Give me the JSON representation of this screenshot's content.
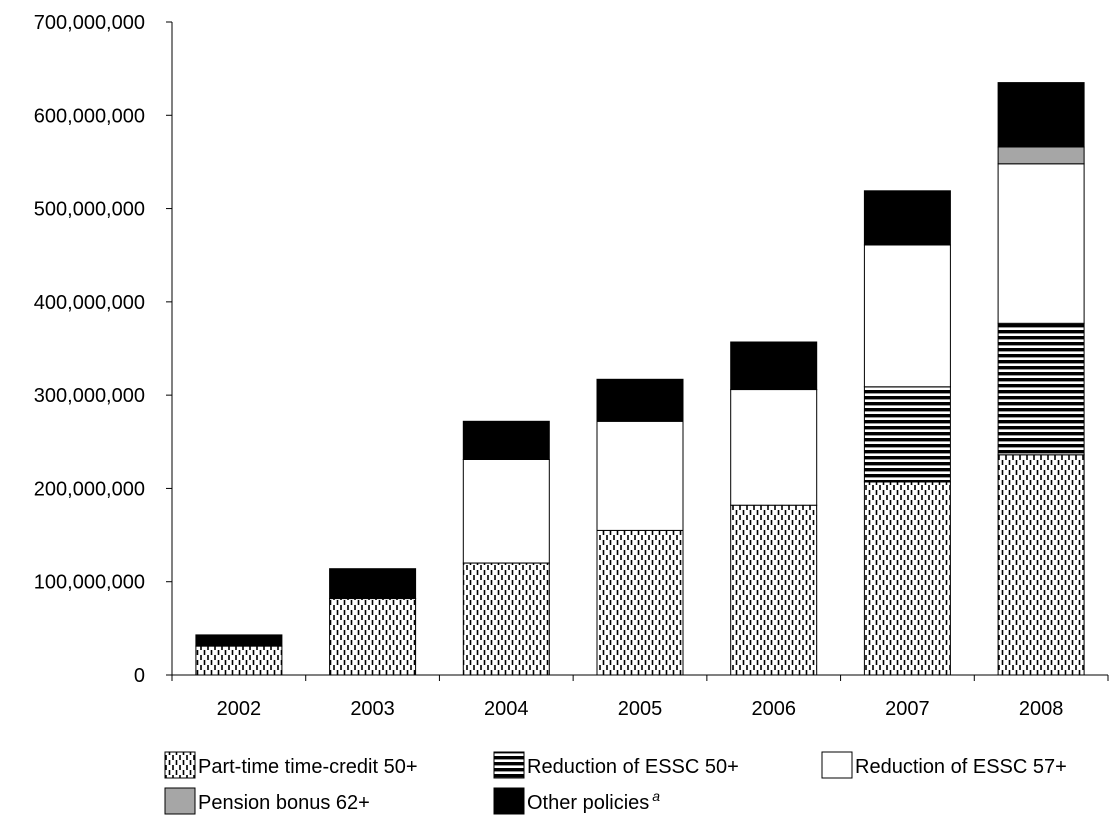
{
  "chart_data": {
    "type": "bar",
    "stacked": true,
    "title": "",
    "xlabel": "",
    "ylabel": "",
    "ylim": [
      0,
      700000000
    ],
    "yticks": [
      0,
      100000000,
      200000000,
      300000000,
      400000000,
      500000000,
      600000000,
      700000000
    ],
    "ytick_labels": [
      "0",
      "100,000,000",
      "200,000,000",
      "300,000,000",
      "400,000,000",
      "500,000,000",
      "600,000,000",
      "700,000,000"
    ],
    "grid": false,
    "legend_position": "bottom",
    "categories": [
      "2002",
      "2003",
      "2004",
      "2005",
      "2006",
      "2007",
      "2008"
    ],
    "series": [
      {
        "name": "Part-time time-credit 50+",
        "pattern": "vertical-dashes",
        "color": "#000000",
        "values": [
          31000000,
          82000000,
          120000000,
          155000000,
          182000000,
          207000000,
          236000000
        ]
      },
      {
        "name": "Reduction of ESSC 50+",
        "pattern": "horizontal-stripes",
        "color": "#000000",
        "values": [
          0,
          0,
          0,
          0,
          0,
          102000000,
          141000000
        ]
      },
      {
        "name": "Reduction of ESSC 57+",
        "pattern": "solid",
        "color": "#ffffff",
        "values": [
          0,
          0,
          111000000,
          117000000,
          124000000,
          152000000,
          171000000
        ]
      },
      {
        "name": "Pension bonus 62+",
        "pattern": "solid",
        "color": "#a6a6a6",
        "values": [
          0,
          0,
          0,
          0,
          0,
          0,
          18000000
        ]
      },
      {
        "name": "Other policies",
        "name_superscript": "a",
        "pattern": "solid",
        "color": "#000000",
        "values": [
          12000000,
          32000000,
          41000000,
          45000000,
          51000000,
          58000000,
          69000000
        ]
      }
    ]
  }
}
